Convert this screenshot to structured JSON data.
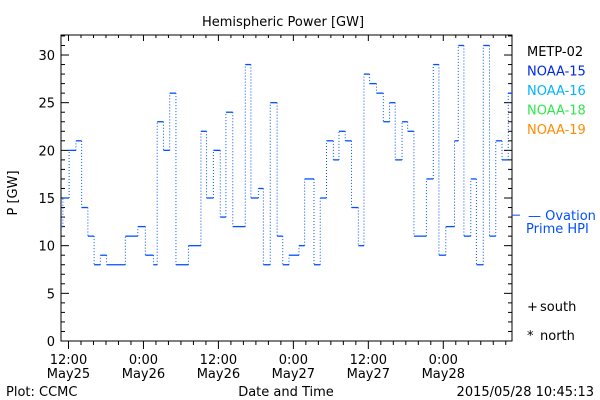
{
  "chart_data": {
    "type": "line",
    "title": "Hemispheric Power [GW]",
    "xlabel": "Date and Time",
    "ylabel": "P [GW]",
    "x_units": "hours since 2015-05-25 00:00",
    "xlim": [
      10.8,
      83.0
    ],
    "ylim": [
      0,
      32.1
    ],
    "y_ticks": [
      0,
      5,
      10,
      15,
      20,
      25,
      30
    ],
    "x_ticks": [
      {
        "x": 12,
        "line1": "12:00",
        "line2": "May25"
      },
      {
        "x": 24,
        "line1": "0:00",
        "line2": "May26"
      },
      {
        "x": 36,
        "line1": "12:00",
        "line2": "May26"
      },
      {
        "x": 48,
        "line1": "0:00",
        "line2": "May27"
      },
      {
        "x": 60,
        "line1": "12:00",
        "line2": "May27"
      },
      {
        "x": 72,
        "line1": "0:00",
        "line2": "May28"
      }
    ],
    "series": [
      {
        "name": "NOAA-15",
        "color": "#0050ff",
        "style": "step",
        "x": [
          10.8,
          11.1,
          12.1,
          13.2,
          14.1,
          15.1,
          16.1,
          17.1,
          18.1,
          21.1,
          23.1,
          24.3,
          25.6,
          26.2,
          27.2,
          28.2,
          29.2,
          31.2,
          33.2,
          34.1,
          35.2,
          36.3,
          37.2,
          38.3,
          40.3,
          41.2,
          42.4,
          43.2,
          44.3,
          45.4,
          46.3,
          47.3,
          48.9,
          49.8,
          51.3,
          52.3,
          53.3,
          54.4,
          55.3,
          56.3,
          57.3,
          58.4,
          59.3,
          60.2,
          61.3,
          62.4,
          63.4,
          64.3,
          65.4,
          66.3,
          67.3,
          69.3,
          70.4,
          71.3,
          72.4,
          73.8,
          74.4,
          75.3,
          76.4,
          77.3,
          78.4,
          79.4,
          80.4,
          81.4,
          82.4
        ],
        "values": [
          12,
          15,
          20,
          21,
          14,
          11,
          8,
          9,
          8,
          11,
          12,
          9,
          8,
          23,
          20,
          26,
          8,
          10,
          22,
          15,
          20,
          13,
          24,
          12,
          29,
          15,
          16,
          8,
          25,
          11,
          8,
          9,
          10,
          17,
          8,
          15,
          21,
          19,
          22,
          21,
          14,
          10,
          28,
          27,
          26,
          23,
          25,
          19,
          23,
          22,
          11,
          17,
          29,
          9,
          12,
          21,
          31,
          11,
          17,
          8,
          31,
          11,
          21,
          19,
          26
        ],
        "x_end": 83.0
      }
    ],
    "reference": {
      "label_line1": "— Ovation",
      "label_line2": "Prime HPI",
      "value": 13.2,
      "color": "#0050ff"
    },
    "legend": {
      "placement": "right",
      "entries": [
        {
          "label": "METP-02",
          "color": "#000000"
        },
        {
          "label": "NOAA-15",
          "color": "#0028e6"
        },
        {
          "label": "NOAA-16",
          "color": "#00b4ff"
        },
        {
          "label": "NOAA-18",
          "color": "#32e650"
        },
        {
          "label": "NOAA-19",
          "color": "#ff8c00"
        }
      ],
      "markers": [
        {
          "symbol": "+",
          "label": "south"
        },
        {
          "symbol": "*",
          "label": "north"
        }
      ]
    },
    "footer": {
      "left": "Plot: CCMC",
      "right": "2015/05/28 10:45:13"
    },
    "grid": false
  }
}
